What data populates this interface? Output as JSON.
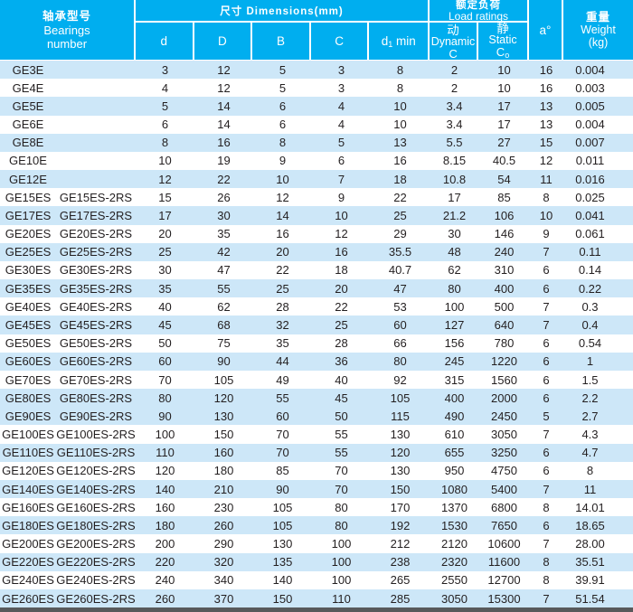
{
  "colors": {
    "header_bg": "#00aeef",
    "row_alt": "#cde7f8",
    "text": "#231f20",
    "footer_bar": "#58595b"
  },
  "header": {
    "bearings": {
      "zh": "轴承型号",
      "en1": "Bearings",
      "en2": "number"
    },
    "dimensions_label": "尺寸 Dimensions(mm)",
    "cols": {
      "d": "d",
      "D": "D",
      "B": "B",
      "C": "C",
      "d1_base": "d",
      "d1_sub": "1",
      "d1_rest": " min"
    },
    "load": {
      "zh": "额定负荷",
      "en": "Load ratings",
      "dynamic": {
        "zh": "动",
        "en": "Dynamic",
        "sym": "C"
      },
      "static": {
        "zh": "静",
        "en": "Static",
        "sym_base": "C",
        "sym_sub": "o"
      }
    },
    "a_label": "a°",
    "weight": {
      "zh": "重量",
      "en": "Weight",
      "unit": "(kg)"
    }
  },
  "rows": [
    {
      "name": "GE3E",
      "name2": "",
      "d": "3",
      "D": "12",
      "B": "5",
      "C": "3",
      "d1": "8",
      "dyn": "2",
      "stat": "10",
      "a": "16",
      "w": "0.004"
    },
    {
      "name": "GE4E",
      "name2": "",
      "d": "4",
      "D": "12",
      "B": "5",
      "C": "3",
      "d1": "8",
      "dyn": "2",
      "stat": "10",
      "a": "16",
      "w": "0.003"
    },
    {
      "name": "GE5E",
      "name2": "",
      "d": "5",
      "D": "14",
      "B": "6",
      "C": "4",
      "d1": "10",
      "dyn": "3.4",
      "stat": "17",
      "a": "13",
      "w": "0.005"
    },
    {
      "name": "GE6E",
      "name2": "",
      "d": "6",
      "D": "14",
      "B": "6",
      "C": "4",
      "d1": "10",
      "dyn": "3.4",
      "stat": "17",
      "a": "13",
      "w": "0.004"
    },
    {
      "name": "GE8E",
      "name2": "",
      "d": "8",
      "D": "16",
      "B": "8",
      "C": "5",
      "d1": "13",
      "dyn": "5.5",
      "stat": "27",
      "a": "15",
      "w": "0.007"
    },
    {
      "name": "GE10E",
      "name2": "",
      "d": "10",
      "D": "19",
      "B": "9",
      "C": "6",
      "d1": "16",
      "dyn": "8.15",
      "stat": "40.5",
      "a": "12",
      "w": "0.011"
    },
    {
      "name": "GE12E",
      "name2": "",
      "d": "12",
      "D": "22",
      "B": "10",
      "C": "7",
      "d1": "18",
      "dyn": "10.8",
      "stat": "54",
      "a": "11",
      "w": "0.016"
    },
    {
      "name": "GE15ES",
      "name2": "GE15ES-2RS",
      "d": "15",
      "D": "26",
      "B": "12",
      "C": "9",
      "d1": "22",
      "dyn": "17",
      "stat": "85",
      "a": "8",
      "w": "0.025"
    },
    {
      "name": "GE17ES",
      "name2": "GE17ES-2RS",
      "d": "17",
      "D": "30",
      "B": "14",
      "C": "10",
      "d1": "25",
      "dyn": "21.2",
      "stat": "106",
      "a": "10",
      "w": "0.041"
    },
    {
      "name": "GE20ES",
      "name2": "GE20ES-2RS",
      "d": "20",
      "D": "35",
      "B": "16",
      "C": "12",
      "d1": "29",
      "dyn": "30",
      "stat": "146",
      "a": "9",
      "w": "0.061"
    },
    {
      "name": "GE25ES",
      "name2": "GE25ES-2RS",
      "d": "25",
      "D": "42",
      "B": "20",
      "C": "16",
      "d1": "35.5",
      "dyn": "48",
      "stat": "240",
      "a": "7",
      "w": "0.11"
    },
    {
      "name": "GE30ES",
      "name2": "GE30ES-2RS",
      "d": "30",
      "D": "47",
      "B": "22",
      "C": "18",
      "d1": "40.7",
      "dyn": "62",
      "stat": "310",
      "a": "6",
      "w": "0.14"
    },
    {
      "name": "GE35ES",
      "name2": "GE35ES-2RS",
      "d": "35",
      "D": "55",
      "B": "25",
      "C": "20",
      "d1": "47",
      "dyn": "80",
      "stat": "400",
      "a": "6",
      "w": "0.22"
    },
    {
      "name": "GE40ES",
      "name2": "GE40ES-2RS",
      "d": "40",
      "D": "62",
      "B": "28",
      "C": "22",
      "d1": "53",
      "dyn": "100",
      "stat": "500",
      "a": "7",
      "w": "0.3"
    },
    {
      "name": "GE45ES",
      "name2": "GE45ES-2RS",
      "d": "45",
      "D": "68",
      "B": "32",
      "C": "25",
      "d1": "60",
      "dyn": "127",
      "stat": "640",
      "a": "7",
      "w": "0.4"
    },
    {
      "name": "GE50ES",
      "name2": "GE50ES-2RS",
      "d": "50",
      "D": "75",
      "B": "35",
      "C": "28",
      "d1": "66",
      "dyn": "156",
      "stat": "780",
      "a": "6",
      "w": "0.54"
    },
    {
      "name": "GE60ES",
      "name2": "GE60ES-2RS",
      "d": "60",
      "D": "90",
      "B": "44",
      "C": "36",
      "d1": "80",
      "dyn": "245",
      "stat": "1220",
      "a": "6",
      "w": "1"
    },
    {
      "name": "GE70ES",
      "name2": "GE70ES-2RS",
      "d": "70",
      "D": "105",
      "B": "49",
      "C": "40",
      "d1": "92",
      "dyn": "315",
      "stat": "1560",
      "a": "6",
      "w": "1.5"
    },
    {
      "name": "GE80ES",
      "name2": "GE80ES-2RS",
      "d": "80",
      "D": "120",
      "B": "55",
      "C": "45",
      "d1": "105",
      "dyn": "400",
      "stat": "2000",
      "a": "6",
      "w": "2.2"
    },
    {
      "name": "GE90ES",
      "name2": "GE90ES-2RS",
      "d": "90",
      "D": "130",
      "B": "60",
      "C": "50",
      "d1": "115",
      "dyn": "490",
      "stat": "2450",
      "a": "5",
      "w": "2.7"
    },
    {
      "name": "GE100ES",
      "name2": "GE100ES-2RS",
      "d": "100",
      "D": "150",
      "B": "70",
      "C": "55",
      "d1": "130",
      "dyn": "610",
      "stat": "3050",
      "a": "7",
      "w": "4.3"
    },
    {
      "name": "GE110ES",
      "name2": "GE110ES-2RS",
      "d": "110",
      "D": "160",
      "B": "70",
      "C": "55",
      "d1": "120",
      "dyn": "655",
      "stat": "3250",
      "a": "6",
      "w": "4.7"
    },
    {
      "name": "GE120ES",
      "name2": "GE120ES-2RS",
      "d": "120",
      "D": "180",
      "B": "85",
      "C": "70",
      "d1": "130",
      "dyn": "950",
      "stat": "4750",
      "a": "6",
      "w": "8"
    },
    {
      "name": "GE140ES",
      "name2": "GE140ES-2RS",
      "d": "140",
      "D": "210",
      "B": "90",
      "C": "70",
      "d1": "150",
      "dyn": "1080",
      "stat": "5400",
      "a": "7",
      "w": "11"
    },
    {
      "name": "GE160ES",
      "name2": "GE160ES-2RS",
      "d": "160",
      "D": "230",
      "B": "105",
      "C": "80",
      "d1": "170",
      "dyn": "1370",
      "stat": "6800",
      "a": "8",
      "w": "14.01"
    },
    {
      "name": "GE180ES",
      "name2": "GE180ES-2RS",
      "d": "180",
      "D": "260",
      "B": "105",
      "C": "80",
      "d1": "192",
      "dyn": "1530",
      "stat": "7650",
      "a": "6",
      "w": "18.65"
    },
    {
      "name": "GE200ES",
      "name2": "GE200ES-2RS",
      "d": "200",
      "D": "290",
      "B": "130",
      "C": "100",
      "d1": "212",
      "dyn": "2120",
      "stat": "10600",
      "a": "7",
      "w": "28.00"
    },
    {
      "name": "GE220ES",
      "name2": "GE220ES-2RS",
      "d": "220",
      "D": "320",
      "B": "135",
      "C": "100",
      "d1": "238",
      "dyn": "2320",
      "stat": "11600",
      "a": "8",
      "w": "35.51"
    },
    {
      "name": "GE240ES",
      "name2": "GE240ES-2RS",
      "d": "240",
      "D": "340",
      "B": "140",
      "C": "100",
      "d1": "265",
      "dyn": "2550",
      "stat": "12700",
      "a": "8",
      "w": "39.91"
    },
    {
      "name": "GE260ES",
      "name2": "GE260ES-2RS",
      "d": "260",
      "D": "370",
      "B": "150",
      "C": "110",
      "d1": "285",
      "dyn": "3050",
      "stat": "15300",
      "a": "7",
      "w": "51.54"
    }
  ]
}
